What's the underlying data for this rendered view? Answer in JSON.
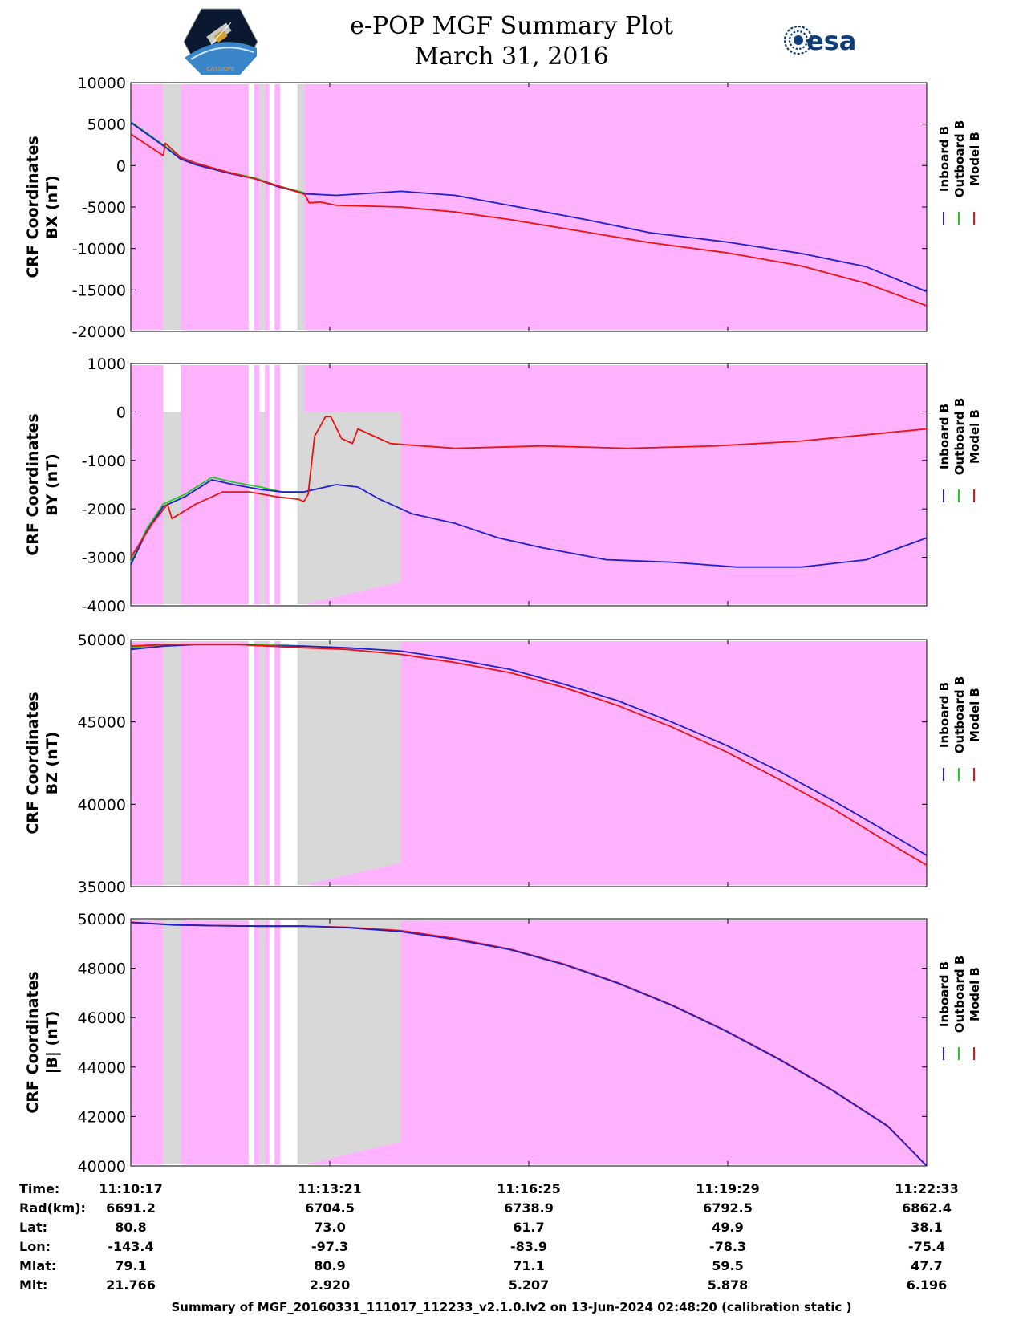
{
  "header": {
    "title_line1": "e-POP MGF Summary Plot",
    "title_line2": "March 31, 2016",
    "esa_logo_text": "esa",
    "epop_logo_text": "CASSIOPE"
  },
  "footer": "Summary of MGF_20160331_111017_112233_v2.1.0.lv2 on 13-Jun-2024 02:48:20 (calibration static )",
  "legend": [
    {
      "name": "Inboard B",
      "color": "#1f1fcf"
    },
    {
      "name": "Outboard B",
      "color": "#22cc22"
    },
    {
      "name": "Model B",
      "color": "#ee1111"
    }
  ],
  "colors": {
    "background_band": "#ffb3ff",
    "gap_band": "#d8d8d8",
    "inboard": "#1f1fcf",
    "outboard": "#22cc22",
    "model": "#ee1111"
  },
  "x_range": [
    0,
    736
  ],
  "bands": [
    {
      "type": "magenta",
      "from": 0,
      "to": 30
    },
    {
      "type": "gray",
      "from": 30,
      "to": 46
    },
    {
      "type": "magenta",
      "from": 46,
      "to": 109
    },
    {
      "type": "magenta",
      "from": 114,
      "to": 119
    },
    {
      "type": "gray",
      "from": 119,
      "to": 124
    },
    {
      "type": "magenta",
      "from": 124,
      "to": 128
    },
    {
      "type": "magenta",
      "from": 133,
      "to": 138
    },
    {
      "type": "gray",
      "from": 154,
      "to": 161
    },
    {
      "type": "magenta",
      "from": 161,
      "to": 736
    }
  ],
  "table": {
    "labels": [
      "Time:",
      "Rad(km):",
      "Lat:",
      "Lon:",
      "Mlat:",
      "Mlt:"
    ],
    "columns": [
      [
        "11:10:17",
        "6691.2",
        "80.8",
        "-143.4",
        "79.1",
        "21.766"
      ],
      [
        "11:13:21",
        "6704.5",
        "73.0",
        "-97.3",
        "80.9",
        "2.920"
      ],
      [
        "11:16:25",
        "6738.9",
        "61.7",
        "-83.9",
        "71.1",
        "5.207"
      ],
      [
        "11:19:29",
        "6792.5",
        "49.9",
        "-78.3",
        "59.5",
        "5.878"
      ],
      [
        "11:22:33",
        "6862.4",
        "38.1",
        "-75.4",
        "47.7",
        "6.196"
      ]
    ]
  },
  "chart_data": [
    {
      "type": "line",
      "ylabel_line1": "CRF Coordinates",
      "ylabel_line2": "BX (nT)",
      "ylim": [
        -20000,
        10000
      ],
      "yticks": [
        10000,
        5000,
        0,
        -5000,
        -10000,
        -15000,
        -20000
      ],
      "series": [
        {
          "name": "Outboard B",
          "color": "#22cc22",
          "x": [
            0,
            30,
            46,
            60,
            90,
            115,
            135,
            155,
            161
          ],
          "y": [
            5300,
            2500,
            900,
            200,
            -800,
            -1500,
            -2400,
            -3100,
            -3300
          ]
        },
        {
          "name": "Inboard B",
          "color": "#1f1fcf",
          "x": [
            0,
            30,
            46,
            60,
            90,
            115,
            135,
            155,
            161,
            190,
            250,
            300,
            350,
            420,
            480,
            550,
            620,
            680,
            736
          ],
          "y": [
            5200,
            2400,
            800,
            100,
            -900,
            -1600,
            -2500,
            -3200,
            -3400,
            -3600,
            -3100,
            -3600,
            -4800,
            -6500,
            -8100,
            -9200,
            -10600,
            -12200,
            -15200
          ]
        },
        {
          "name": "Model B",
          "color": "#ee1111",
          "x": [
            0,
            30,
            32,
            46,
            60,
            90,
            115,
            135,
            155,
            161,
            165,
            175,
            190,
            250,
            300,
            350,
            420,
            480,
            550,
            620,
            680,
            736
          ],
          "y": [
            3800,
            1200,
            2700,
            1000,
            300,
            -800,
            -1600,
            -2400,
            -3200,
            -3500,
            -4500,
            -4400,
            -4800,
            -5000,
            -5600,
            -6500,
            -8000,
            -9300,
            -10500,
            -12100,
            -14200,
            -16900
          ]
        }
      ]
    },
    {
      "type": "line",
      "ylabel_line1": "CRF Coordinates",
      "ylabel_line2": "BY (nT)",
      "ylim": [
        -4000,
        1000
      ],
      "yticks": [
        1000,
        0,
        -1000,
        -2000,
        -3000,
        -4000
      ],
      "series": [
        {
          "name": "Outboard B",
          "color": "#22cc22",
          "x": [
            0,
            15,
            30,
            50,
            75,
            95,
            120,
            140,
            160
          ],
          "y": [
            -3100,
            -2400,
            -1900,
            -1700,
            -1350,
            -1450,
            -1550,
            -1650,
            -1650
          ]
        },
        {
          "name": "Inboard B",
          "color": "#1f1fcf",
          "x": [
            0,
            15,
            30,
            50,
            75,
            95,
            120,
            140,
            160,
            190,
            210,
            230,
            260,
            300,
            340,
            380,
            440,
            500,
            560,
            620,
            680,
            736
          ],
          "y": [
            -3150,
            -2450,
            -1950,
            -1750,
            -1400,
            -1500,
            -1600,
            -1650,
            -1650,
            -1500,
            -1550,
            -1800,
            -2100,
            -2300,
            -2600,
            -2800,
            -3050,
            -3100,
            -3200,
            -3200,
            -3050,
            -2600
          ]
        },
        {
          "name": "Model B",
          "color": "#ee1111",
          "x": [
            0,
            20,
            34,
            38,
            60,
            85,
            110,
            135,
            155,
            160,
            164,
            170,
            180,
            185,
            195,
            205,
            210,
            240,
            300,
            380,
            460,
            540,
            620,
            736
          ],
          "y": [
            -3000,
            -2300,
            -1900,
            -2200,
            -1900,
            -1650,
            -1650,
            -1750,
            -1800,
            -1850,
            -1700,
            -500,
            -100,
            -100,
            -550,
            -650,
            -350,
            -650,
            -750,
            -700,
            -750,
            -700,
            -600,
            -350
          ]
        }
      ]
    },
    {
      "type": "line",
      "ylabel_line1": "CRF Coordinates",
      "ylabel_line2": "BZ (nT)",
      "ylim": [
        35000,
        50000
      ],
      "yticks": [
        50000,
        45000,
        40000,
        35000
      ],
      "series": [
        {
          "name": "Outboard B",
          "color": "#22cc22",
          "x": [
            0,
            30,
            60,
            100,
            130,
            161
          ],
          "y": [
            49500,
            49700,
            49700,
            49700,
            49700,
            49600
          ]
        },
        {
          "name": "Inboard B",
          "color": "#1f1fcf",
          "x": [
            0,
            30,
            60,
            100,
            130,
            161,
            200,
            250,
            300,
            350,
            400,
            450,
            500,
            550,
            600,
            650,
            700,
            736
          ],
          "y": [
            49400,
            49600,
            49700,
            49700,
            49600,
            49600,
            49500,
            49300,
            48800,
            48200,
            47300,
            46300,
            45000,
            43600,
            42000,
            40200,
            38300,
            36900
          ]
        },
        {
          "name": "Model B",
          "color": "#ee1111",
          "x": [
            0,
            30,
            60,
            100,
            130,
            161,
            200,
            250,
            300,
            350,
            400,
            450,
            500,
            550,
            600,
            650,
            700,
            736
          ],
          "y": [
            49600,
            49700,
            49700,
            49700,
            49600,
            49500,
            49400,
            49100,
            48600,
            48000,
            47100,
            46000,
            44700,
            43200,
            41500,
            39700,
            37700,
            36300
          ]
        }
      ]
    },
    {
      "type": "line",
      "ylabel_line1": "CRF Coordinates",
      "ylabel_line2": "|B| (nT)",
      "ylim": [
        40000,
        50000
      ],
      "yticks": [
        50000,
        48000,
        46000,
        44000,
        42000,
        40000
      ],
      "series": [
        {
          "name": "Outboard B",
          "color": "#22cc22",
          "x": [
            0,
            40,
            80,
            120,
            161
          ],
          "y": [
            49850,
            49750,
            49720,
            49700,
            49700
          ]
        },
        {
          "name": "Model B",
          "color": "#ee1111",
          "x": [
            0,
            40,
            80,
            120,
            161,
            200,
            250,
            300,
            350,
            400,
            450,
            500,
            550,
            600,
            650,
            700,
            736
          ],
          "y": [
            49860,
            49760,
            49720,
            49700,
            49700,
            49660,
            49520,
            49200,
            48780,
            48180,
            47420,
            46520,
            45480,
            44320,
            43040,
            41620,
            40000
          ]
        },
        {
          "name": "Inboard B",
          "color": "#1f1fcf",
          "x": [
            0,
            40,
            80,
            120,
            161,
            200,
            250,
            300,
            350,
            400,
            450,
            500,
            550,
            600,
            650,
            700,
            736
          ],
          "y": [
            49850,
            49750,
            49720,
            49700,
            49700,
            49640,
            49480,
            49160,
            48760,
            48160,
            47400,
            46500,
            45460,
            44300,
            43020,
            41600,
            40000
          ]
        }
      ]
    }
  ]
}
